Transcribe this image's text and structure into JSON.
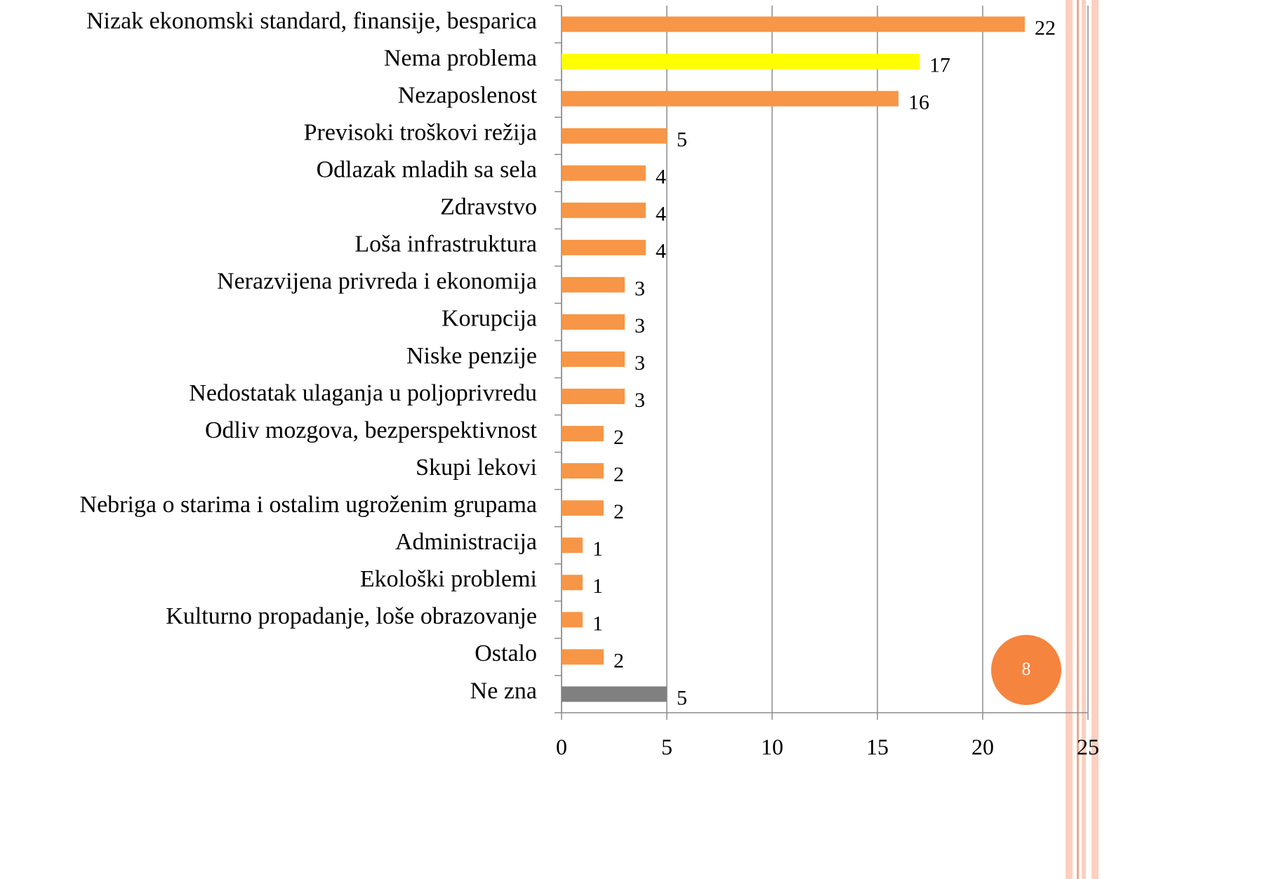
{
  "chart_data": {
    "type": "bar",
    "orientation": "horizontal",
    "categories": [
      "Nizak ekonomski standard, finansije, besparica",
      "Nema problema",
      "Nezaposlenost",
      "Previsoki troškovi režija",
      "Odlazak mladih sa sela",
      "Zdravstvo",
      "Loša infrastruktura",
      "Nerazvijena privreda i ekonomija",
      "Korupcija",
      "Niske penzije",
      "Nedostatak ulaganja u poljoprivredu",
      "Odliv mozgova, bezperspektivnost",
      "Skupi lekovi",
      "Nebriga o starima i ostalim ugroženim grupama",
      "Administracija",
      "Ekološki problemi",
      "Kulturno propadanje, loše obrazovanje",
      "Ostalo",
      "Ne zna"
    ],
    "values": [
      22,
      17,
      16,
      5,
      4,
      4,
      4,
      3,
      3,
      3,
      3,
      2,
      2,
      2,
      1,
      1,
      1,
      2,
      5
    ],
    "colors": [
      "#f79646",
      "#ffff00",
      "#f79646",
      "#f79646",
      "#f79646",
      "#f79646",
      "#f79646",
      "#f79646",
      "#f79646",
      "#f79646",
      "#f79646",
      "#f79646",
      "#f79646",
      "#f79646",
      "#f79646",
      "#f79646",
      "#f79646",
      "#f79646",
      "#808080"
    ],
    "xlim": [
      0,
      25
    ],
    "xticks": [
      0,
      5,
      10,
      15,
      20,
      25
    ],
    "grid": true
  },
  "slide": {
    "page_number": "8"
  }
}
